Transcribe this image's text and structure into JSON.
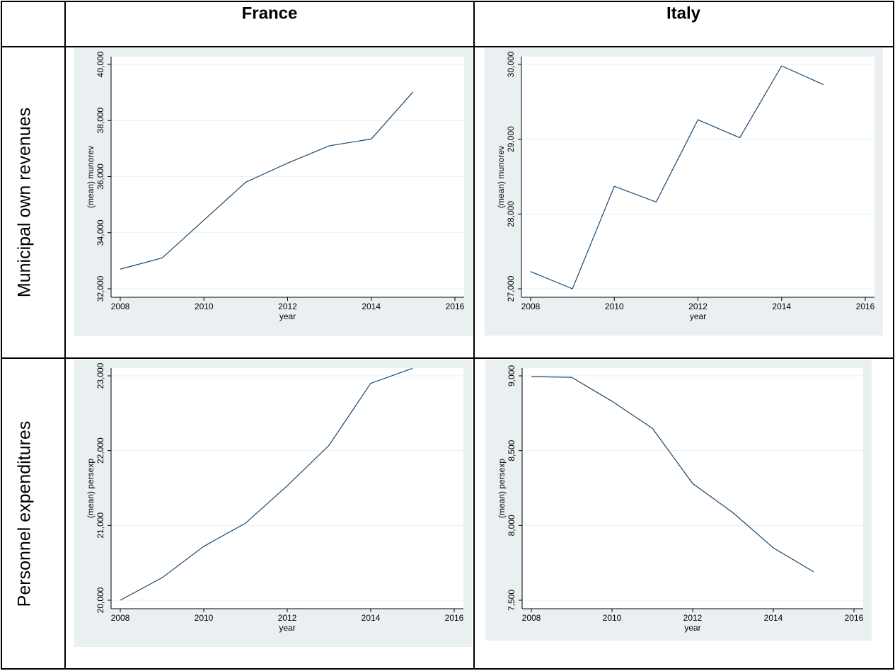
{
  "table": {
    "columns": [
      "France",
      "Italy"
    ],
    "rows": [
      "Municipal own revenues",
      "Personnel expenditures"
    ]
  },
  "chart_data": [
    {
      "type": "line",
      "xlabel": "year",
      "ylabel": "(mean) munorev",
      "color": "#1a476f",
      "grid": true,
      "x": [
        2008,
        2009,
        2010,
        2011,
        2012,
        2013,
        2014,
        2015
      ],
      "values": [
        32700,
        33100,
        34450,
        35800,
        36480,
        37100,
        37340,
        39020
      ],
      "xlim": [
        2008,
        2016
      ],
      "xticks": [
        2008,
        2010,
        2012,
        2014,
        2016
      ],
      "ylim": [
        32000,
        40000
      ],
      "yticks": [
        {
          "value": 32000,
          "label": "32,000"
        },
        {
          "value": 34000,
          "label": "34,000"
        },
        {
          "value": 36000,
          "label": "36,000"
        },
        {
          "value": 38000,
          "label": "38,000"
        },
        {
          "value": 40000,
          "label": "40,000"
        }
      ]
    },
    {
      "type": "line",
      "xlabel": "year",
      "ylabel": "(mean) munorev",
      "color": "#1a476f",
      "grid": true,
      "x": [
        2008,
        2009,
        2010,
        2011,
        2012,
        2013,
        2014,
        2015
      ],
      "values": [
        27230,
        27000,
        28370,
        28160,
        29260,
        29020,
        29980,
        29730
      ],
      "xlim": [
        2008,
        2016
      ],
      "xticks": [
        2008,
        2010,
        2012,
        2014,
        2016
      ],
      "ylim": [
        27000,
        30000
      ],
      "yticks": [
        {
          "value": 27000,
          "label": "27,000"
        },
        {
          "value": 28000,
          "label": "28,000"
        },
        {
          "value": 29000,
          "label": "29,000"
        },
        {
          "value": 30000,
          "label": "30,000"
        }
      ]
    },
    {
      "type": "line",
      "xlabel": "year",
      "ylabel": "(mean) persexp",
      "color": "#1a476f",
      "grid": true,
      "x": [
        2008,
        2009,
        2010,
        2011,
        2012,
        2013,
        2014,
        2015
      ],
      "values": [
        20000,
        20300,
        20720,
        21030,
        21530,
        22070,
        22900,
        23100
      ],
      "xlim": [
        2008,
        2016
      ],
      "xticks": [
        2008,
        2010,
        2012,
        2014,
        2016
      ],
      "ylim": [
        20000,
        23000
      ],
      "yticks": [
        {
          "value": 20000,
          "label": "20,000"
        },
        {
          "value": 21000,
          "label": "21,000"
        },
        {
          "value": 22000,
          "label": "22,000"
        },
        {
          "value": 23000,
          "label": "23,000"
        }
      ]
    },
    {
      "type": "line",
      "xlabel": "year",
      "ylabel": "(mean) persexp",
      "color": "#1a476f",
      "grid": true,
      "x": [
        2008,
        2009,
        2010,
        2011,
        2012,
        2013,
        2014,
        2015
      ],
      "values": [
        8995,
        8990,
        8830,
        8650,
        8280,
        8085,
        7850,
        7690
      ],
      "xlim": [
        2008,
        2016
      ],
      "xticks": [
        2008,
        2010,
        2012,
        2014,
        2016
      ],
      "ylim": [
        7500,
        9000
      ],
      "yticks": [
        {
          "value": 7500,
          "label": "7,500"
        },
        {
          "value": 8000,
          "label": "8,000"
        },
        {
          "value": 8500,
          "label": "8,500"
        },
        {
          "value": 9000,
          "label": "9,000"
        }
      ]
    }
  ]
}
